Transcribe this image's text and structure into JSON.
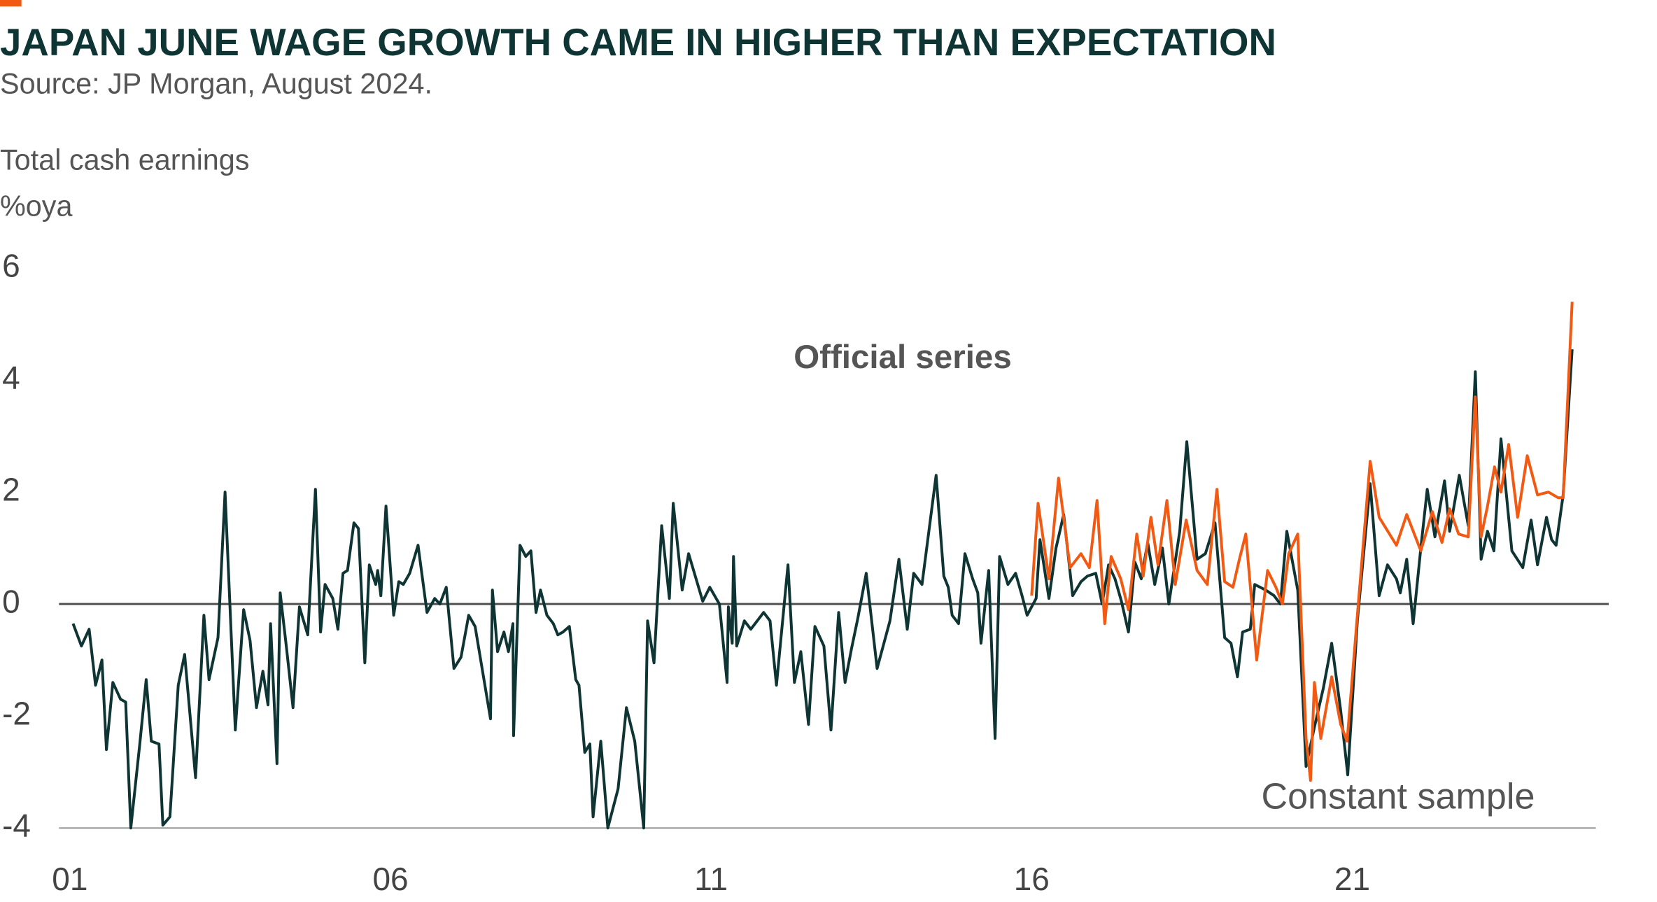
{
  "chart_data": {
    "type": "line",
    "title": "JAPAN JUNE WAGE GROWTH CAME IN HIGHER THAN EXPECTATION",
    "subtitle": "Source: JP Morgan, August 2024.",
    "ylabel": "Total cash earnings",
    "yunit": "%oya",
    "annotations": [
      "Official series",
      "Constant sample"
    ],
    "xlim": [
      2000.83,
      2024.8
    ],
    "xticks": [
      {
        "value": 2001,
        "label": "01"
      },
      {
        "value": 2006,
        "label": "06"
      },
      {
        "value": 2011,
        "label": "11"
      },
      {
        "value": 2016,
        "label": "16"
      },
      {
        "value": 2021,
        "label": "21"
      }
    ],
    "ylim": [
      -4,
      6
    ],
    "yticks": [
      -4,
      -2,
      0,
      2,
      4,
      6
    ],
    "grid": false,
    "series": [
      {
        "name": "Official series",
        "color": "#0e3434",
        "x": [
          2001.05,
          2001.18,
          2001.3,
          2001.4,
          2001.5,
          2001.57,
          2001.67,
          2001.79,
          2001.87,
          2001.95,
          2002.09,
          2002.19,
          2002.27,
          2002.39,
          2002.45,
          2002.56,
          2002.69,
          2002.79,
          2002.96,
          2003.09,
          2003.17,
          2003.31,
          2003.42,
          2003.58,
          2003.71,
          2003.81,
          2003.91,
          2004.01,
          2004.09,
          2004.13,
          2004.23,
          2004.28,
          2004.38,
          2004.48,
          2004.58,
          2004.71,
          2004.83,
          2004.91,
          2004.98,
          2005.1,
          2005.18,
          2005.26,
          2005.33,
          2005.43,
          2005.5,
          2005.6,
          2005.67,
          2005.77,
          2005.8,
          2005.85,
          2005.93,
          2006.05,
          2006.13,
          2006.2,
          2006.3,
          2006.43,
          2006.57,
          2006.69,
          2006.77,
          2006.87,
          2006.99,
          2007.1,
          2007.22,
          2007.32,
          2007.56,
          2007.59,
          2007.67,
          2007.77,
          2007.84,
          2007.91,
          2007.92,
          2008.02,
          2008.11,
          2008.19,
          2008.27,
          2008.34,
          2008.44,
          2008.54,
          2008.61,
          2008.69,
          2008.79,
          2008.89,
          2008.94,
          2009.03,
          2009.11,
          2009.16,
          2009.28,
          2009.39,
          2009.55,
          2009.68,
          2009.81,
          2009.95,
          2010.01,
          2010.11,
          2010.23,
          2010.35,
          2010.41,
          2010.55,
          2010.65,
          2010.87,
          2010.98,
          2011.13,
          2011.25,
          2011.27,
          2011.33,
          2011.35,
          2011.4,
          2011.52,
          2011.62,
          2011.82,
          2011.92,
          2012.02,
          2012.2,
          2012.3,
          2012.4,
          2012.52,
          2012.62,
          2012.76,
          2012.87,
          2012.99,
          2013.09,
          2013.19,
          2013.29,
          2013.42,
          2013.59,
          2013.79,
          2013.93,
          2014.06,
          2014.16,
          2014.29,
          2014.51,
          2014.63,
          2014.7,
          2014.76,
          2014.86,
          2014.96,
          2015.08,
          2015.16,
          2015.21,
          2015.33,
          2015.43,
          2015.5,
          2015.63,
          2015.75,
          2015.85,
          2015.93,
          2016.07,
          2016.13,
          2016.27,
          2016.38,
          2016.5,
          2016.64,
          2016.77,
          2016.87,
          2017.0,
          2017.1,
          2017.2,
          2017.3,
          2017.4,
          2017.51,
          2017.61,
          2017.71,
          2017.81,
          2017.92,
          2018.04,
          2018.14,
          2018.31,
          2018.42,
          2018.58,
          2018.71,
          2018.86,
          2019.01,
          2019.11,
          2019.21,
          2019.29,
          2019.41,
          2019.48,
          2019.65,
          2019.78,
          2019.88,
          2019.98,
          2020.15,
          2020.28,
          2020.41,
          2020.55,
          2020.68,
          2020.82,
          2020.93,
          2021.08,
          2021.28,
          2021.42,
          2021.55,
          2021.69,
          2021.75,
          2021.85,
          2021.95,
          2022.07,
          2022.17,
          2022.29,
          2022.44,
          2022.52,
          2022.67,
          2022.81,
          2022.92,
          2023.01,
          2023.11,
          2023.21,
          2023.32,
          2023.49,
          2023.66,
          2023.79,
          2023.89,
          2024.03,
          2024.11,
          2024.18,
          2024.29,
          2024.43
        ],
        "values": [
          -0.35,
          -0.75,
          -0.45,
          -1.45,
          -1.0,
          -2.6,
          -1.4,
          -1.7,
          -1.75,
          -4.0,
          -2.5,
          -1.35,
          -2.45,
          -2.5,
          -3.95,
          -3.8,
          -1.45,
          -0.9,
          -3.1,
          -0.2,
          -1.35,
          -0.6,
          2.0,
          -2.25,
          -0.1,
          -0.65,
          -1.85,
          -1.2,
          -1.8,
          -0.35,
          -2.85,
          0.2,
          -0.8,
          -1.85,
          -0.05,
          -0.55,
          2.05,
          -0.5,
          0.35,
          0.1,
          -0.45,
          0.55,
          0.6,
          1.45,
          1.35,
          -1.05,
          0.7,
          0.35,
          0.6,
          0.15,
          1.75,
          -0.2,
          0.4,
          0.35,
          0.55,
          1.05,
          -0.15,
          0.1,
          0.0,
          0.3,
          -1.15,
          -0.95,
          -0.2,
          -0.4,
          -2.05,
          0.25,
          -0.85,
          -0.5,
          -0.85,
          -0.35,
          -2.35,
          1.05,
          0.85,
          0.95,
          -0.15,
          0.25,
          -0.2,
          -0.35,
          -0.55,
          -0.5,
          -0.4,
          -1.35,
          -1.45,
          -2.65,
          -2.5,
          -3.8,
          -2.45,
          -4.0,
          -3.3,
          -1.85,
          -2.45,
          -4.0,
          -0.3,
          -1.05,
          1.4,
          0.1,
          1.8,
          0.25,
          0.9,
          0.05,
          0.3,
          0.0,
          -1.4,
          -0.05,
          -0.7,
          0.85,
          -0.75,
          -0.3,
          -0.45,
          -0.15,
          -0.3,
          -1.45,
          0.7,
          -1.4,
          -0.85,
          -2.15,
          -0.4,
          -0.75,
          -2.25,
          -0.15,
          -1.4,
          -0.8,
          -0.25,
          0.55,
          -1.15,
          -0.3,
          0.8,
          -0.45,
          0.55,
          0.35,
          2.3,
          0.5,
          0.3,
          -0.2,
          -0.35,
          0.9,
          0.45,
          0.2,
          -0.7,
          0.6,
          -2.4,
          0.85,
          0.35,
          0.55,
          0.15,
          -0.2,
          0.1,
          1.15,
          0.1,
          1.0,
          1.6,
          0.15,
          0.4,
          0.5,
          0.55,
          0.0,
          0.7,
          0.45,
          0.05,
          -0.5,
          0.75,
          0.45,
          1.1,
          0.35,
          1.0,
          0.0,
          1.3,
          2.9,
          0.8,
          0.9,
          1.45,
          -0.6,
          -0.7,
          -1.3,
          -0.5,
          -0.45,
          0.35,
          0.25,
          0.15,
          0.0,
          1.3,
          0.25,
          -2.9,
          -2.2,
          -1.5,
          -0.7,
          -1.9,
          -3.05,
          -0.3,
          2.15,
          0.15,
          0.7,
          0.45,
          0.2,
          0.8,
          -0.35,
          1.0,
          2.05,
          1.2,
          2.2,
          1.3,
          2.3,
          1.4,
          4.15,
          0.8,
          1.3,
          0.95,
          2.95,
          0.95,
          0.65,
          1.5,
          0.7,
          1.55,
          1.15,
          1.05,
          1.95,
          4.55
        ]
      },
      {
        "name": "Constant sample",
        "color": "#f25a14",
        "x": [
          2016.0,
          2016.1,
          2016.27,
          2016.42,
          2016.6,
          2016.77,
          2016.9,
          2017.02,
          2017.14,
          2017.24,
          2017.39,
          2017.51,
          2017.64,
          2017.74,
          2017.86,
          2017.97,
          2018.11,
          2018.24,
          2018.41,
          2018.58,
          2018.74,
          2018.89,
          2019.01,
          2019.14,
          2019.24,
          2019.34,
          2019.51,
          2019.68,
          2019.81,
          2019.91,
          2020.01,
          2020.15,
          2020.28,
          2020.35,
          2020.41,
          2020.51,
          2020.68,
          2020.82,
          2020.92,
          2021.08,
          2021.28,
          2021.42,
          2021.69,
          2021.85,
          2022.07,
          2022.25,
          2022.4,
          2022.52,
          2022.66,
          2022.81,
          2022.92,
          2023.01,
          2023.11,
          2023.22,
          2023.32,
          2023.44,
          2023.58,
          2023.73,
          2023.89,
          2024.06,
          2024.21,
          2024.29,
          2024.43
        ],
        "values": [
          0.15,
          1.8,
          0.45,
          2.25,
          0.65,
          0.9,
          0.65,
          1.85,
          -0.35,
          0.85,
          0.45,
          -0.1,
          1.25,
          0.5,
          1.55,
          0.7,
          1.85,
          0.35,
          1.5,
          0.6,
          0.35,
          2.05,
          0.4,
          0.3,
          0.8,
          1.25,
          -1.0,
          0.6,
          0.3,
          0.0,
          0.9,
          1.25,
          -2.4,
          -3.15,
          -1.4,
          -2.4,
          -1.3,
          -2.15,
          -2.45,
          -0.2,
          2.55,
          1.55,
          1.05,
          1.6,
          0.95,
          1.65,
          1.1,
          1.7,
          1.25,
          1.2,
          3.7,
          1.2,
          1.75,
          2.45,
          2.0,
          2.85,
          1.55,
          2.65,
          1.95,
          2.0,
          1.9,
          1.9,
          5.4
        ]
      }
    ]
  }
}
